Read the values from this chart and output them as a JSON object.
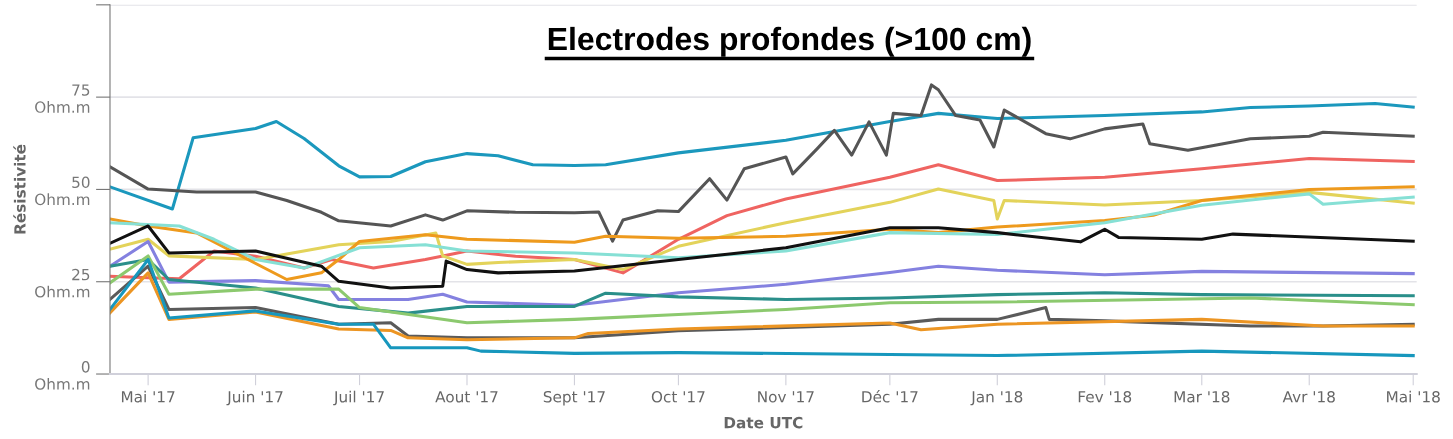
{
  "chart_data": {
    "type": "line",
    "title": "Electrodes profondes (>100 cm)",
    "xlabel": "Date UTC",
    "ylabel": "Résistivité",
    "xlim": [
      "2017-04-20",
      "2018-05-02"
    ],
    "xticks": [
      {
        "value": "2017-05-01",
        "label": "Mai '17"
      },
      {
        "value": "2017-06-01",
        "label": "Juin '17"
      },
      {
        "value": "2017-07-01",
        "label": "Juil '17"
      },
      {
        "value": "2017-08-01",
        "label": "Aout '17"
      },
      {
        "value": "2017-09-01",
        "label": "Sept '17"
      },
      {
        "value": "2017-10-01",
        "label": "Oct '17"
      },
      {
        "value": "2017-11-01",
        "label": "Nov '17"
      },
      {
        "value": "2017-12-01",
        "label": "Déc '17"
      },
      {
        "value": "2018-01-01",
        "label": "Jan '18"
      },
      {
        "value": "2018-02-01",
        "label": "Fev '18"
      },
      {
        "value": "2018-03-01",
        "label": "Mar '18"
      },
      {
        "value": "2018-04-01",
        "label": "Avr '18"
      },
      {
        "value": "2018-05-01",
        "label": "Mai '18"
      }
    ],
    "ylim": [
      0,
      100
    ],
    "yticks": [
      {
        "value": 0,
        "label": "0\nOhm.m"
      },
      {
        "value": 25,
        "label": "25\nOhm.m"
      },
      {
        "value": 50,
        "label": "50\nOhm.m"
      },
      {
        "value": 75,
        "label": "75\nOhm.m"
      },
      {
        "value": 100,
        "label": null
      }
    ],
    "grid": "y",
    "line_style": "solid",
    "marker": "none",
    "series": [
      {
        "color": "#1b98bd",
        "x": [
          "2017-04-20",
          "2017-05-08",
          "2017-05-14",
          "2017-06-01",
          "2017-06-07",
          "2017-06-15",
          "2017-06-25",
          "2017-07-01",
          "2017-07-10",
          "2017-07-20",
          "2017-08-01",
          "2017-08-10",
          "2017-08-20",
          "2017-09-01",
          "2017-09-10",
          "2017-10-01",
          "2017-11-01",
          "2017-12-01",
          "2017-12-15",
          "2018-01-01",
          "2018-02-01",
          "2018-03-01",
          "2018-03-15",
          "2018-04-01",
          "2018-04-20",
          "2018-05-01"
        ],
        "values": [
          50.7,
          44.7,
          64,
          66.5,
          68.4,
          63.8,
          56.4,
          53.4,
          53.5,
          57.5,
          59.7,
          59.1,
          56.7,
          56.5,
          56.7,
          59.9,
          63.3,
          68.4,
          70.6,
          69.2,
          70,
          71,
          72.2,
          72.6,
          73.3,
          72.3
        ]
      },
      {
        "color": "#555555",
        "x": [
          "2017-04-20",
          "2017-05-01",
          "2017-05-15",
          "2017-06-01",
          "2017-06-10",
          "2017-06-20",
          "2017-06-25",
          "2017-07-10",
          "2017-07-20",
          "2017-07-25",
          "2017-08-01",
          "2017-08-15",
          "2017-09-01",
          "2017-09-08",
          "2017-09-12",
          "2017-09-15",
          "2017-09-25",
          "2017-10-01",
          "2017-10-10",
          "2017-10-15",
          "2017-10-20",
          "2017-11-01",
          "2017-11-03",
          "2017-11-10",
          "2017-11-15",
          "2017-11-20",
          "2017-11-25",
          "2017-11-30",
          "2017-12-02",
          "2017-12-10",
          "2017-12-13",
          "2017-12-15",
          "2017-12-20",
          "2017-12-27",
          "2017-12-31",
          "2018-01-03",
          "2018-01-15",
          "2018-01-22",
          "2018-02-01",
          "2018-02-12",
          "2018-02-14",
          "2018-02-25",
          "2018-03-15",
          "2018-04-01",
          "2018-04-05",
          "2018-05-01"
        ],
        "values": [
          56.1,
          50.1,
          49.3,
          49.3,
          47,
          43.8,
          41.5,
          40.1,
          43.1,
          41.7,
          44.2,
          43.8,
          43.7,
          43.9,
          36,
          41.7,
          44.2,
          44,
          52.9,
          47.1,
          55.6,
          58.8,
          54.2,
          61,
          66,
          59.3,
          68.3,
          59.3,
          70.6,
          70,
          78.3,
          77,
          70,
          68.8,
          61.5,
          71.5,
          65.1,
          63.7,
          66.4,
          67.7,
          62.4,
          60.6,
          63.7,
          64.4,
          65.5,
          64.4
        ]
      },
      {
        "color": "#ef6461",
        "x": [
          "2017-04-20",
          "2017-05-01",
          "2017-05-10",
          "2017-05-20",
          "2017-06-01",
          "2017-06-15",
          "2017-06-23",
          "2017-07-05",
          "2017-07-20",
          "2017-08-01",
          "2017-08-15",
          "2017-09-01",
          "2017-09-15",
          "2017-10-01",
          "2017-10-15",
          "2017-11-01",
          "2017-12-01",
          "2017-12-15",
          "2018-01-01",
          "2018-02-01",
          "2018-03-01",
          "2018-04-01",
          "2018-05-01"
        ],
        "values": [
          26.5,
          26.1,
          25.8,
          33.3,
          31.9,
          28.7,
          31,
          28.7,
          31,
          33.3,
          31.9,
          31,
          27.4,
          36.5,
          42.9,
          47.4,
          53.3,
          56.7,
          52.4,
          53.3,
          55.6,
          58.4,
          57.6
        ]
      },
      {
        "color": "#e3d35a",
        "x": [
          "2017-04-20",
          "2017-05-01",
          "2017-05-07",
          "2017-06-01",
          "2017-06-25",
          "2017-07-10",
          "2017-07-23",
          "2017-07-25",
          "2017-08-01",
          "2017-08-10",
          "2017-09-01",
          "2017-09-15",
          "2017-10-01",
          "2017-11-01",
          "2017-12-01",
          "2017-12-15",
          "2017-12-31",
          "2018-01-01",
          "2018-01-03",
          "2018-02-01",
          "2018-03-01",
          "2018-04-01",
          "2018-05-01"
        ],
        "values": [
          33.8,
          36.5,
          32,
          31,
          35,
          35.9,
          38.2,
          32,
          29.7,
          30.2,
          31,
          28.3,
          34.6,
          41,
          46.5,
          50.1,
          47,
          42,
          47,
          45.8,
          47,
          49.2,
          46.3
        ]
      },
      {
        "color": "#ee9a1d",
        "x": [
          "2017-04-20",
          "2017-05-01",
          "2017-05-15",
          "2017-06-10",
          "2017-06-20",
          "2017-06-25",
          "2017-07-01",
          "2017-07-20",
          "2017-08-01",
          "2017-09-01",
          "2017-09-10",
          "2017-10-01",
          "2017-11-01",
          "2017-12-01",
          "2017-12-15",
          "2018-01-01",
          "2018-02-01",
          "2018-02-15",
          "2018-03-01",
          "2018-04-01",
          "2018-05-01"
        ],
        "values": [
          42,
          40.1,
          38.2,
          25.6,
          27.4,
          31,
          35.9,
          37.7,
          36.5,
          35.7,
          37.3,
          36.8,
          37.3,
          39.2,
          38.3,
          39.8,
          41.6,
          43,
          47,
          50,
          50.7
        ]
      },
      {
        "color": "#86e0d5",
        "x": [
          "2017-04-20",
          "2017-05-10",
          "2017-05-20",
          "2017-06-01",
          "2017-06-15",
          "2017-07-01",
          "2017-07-20",
          "2017-08-01",
          "2017-09-01",
          "2017-10-01",
          "2017-11-01",
          "2017-12-01",
          "2018-01-01",
          "2018-02-01",
          "2018-03-01",
          "2018-04-01",
          "2018-04-05",
          "2018-05-01"
        ],
        "values": [
          41,
          40.1,
          36.5,
          31,
          28.7,
          34.2,
          35,
          33.3,
          32.8,
          31.5,
          33.3,
          38.3,
          37.8,
          41,
          45.7,
          48.8,
          46,
          47.9
        ]
      },
      {
        "color": "#111111",
        "x": [
          "2017-04-20",
          "2017-05-01",
          "2017-05-07",
          "2017-06-01",
          "2017-06-20",
          "2017-06-25",
          "2017-07-10",
          "2017-07-25",
          "2017-07-26",
          "2017-08-01",
          "2017-08-10",
          "2017-09-01",
          "2017-10-01",
          "2017-11-01",
          "2017-12-01",
          "2017-12-15",
          "2018-01-01",
          "2018-01-25",
          "2018-02-01",
          "2018-02-05",
          "2018-03-01",
          "2018-03-10",
          "2018-05-01"
        ],
        "values": [
          35.4,
          40.1,
          32.8,
          33.3,
          29.2,
          25.1,
          23.3,
          23.8,
          30.6,
          28.3,
          27.4,
          27.9,
          31,
          34.2,
          39.6,
          39.6,
          38.3,
          35.8,
          39.2,
          37,
          36.5,
          37.9,
          36
        ]
      },
      {
        "color": "#8481e0",
        "x": [
          "2017-04-20",
          "2017-05-01",
          "2017-05-07",
          "2017-06-01",
          "2017-06-22",
          "2017-06-25",
          "2017-07-15",
          "2017-07-25",
          "2017-08-01",
          "2017-09-01",
          "2017-10-01",
          "2017-11-01",
          "2017-12-01",
          "2017-12-15",
          "2018-01-01",
          "2018-02-01",
          "2018-03-01",
          "2018-05-01"
        ],
        "values": [
          29.2,
          35.9,
          24.9,
          25.3,
          23.9,
          20.2,
          20.2,
          21.6,
          19.5,
          18.6,
          22,
          24.3,
          27.5,
          29.2,
          28.1,
          26.9,
          27.8,
          27.2
        ]
      },
      {
        "color": "#2a8f8a",
        "x": [
          "2017-04-20",
          "2017-05-01",
          "2017-05-07",
          "2017-06-01",
          "2017-06-25",
          "2017-07-15",
          "2017-08-01",
          "2017-09-01",
          "2017-09-10",
          "2017-10-01",
          "2017-11-01",
          "2017-12-01",
          "2018-01-01",
          "2018-02-01",
          "2018-03-01",
          "2018-05-01"
        ],
        "values": [
          29.2,
          31,
          25.6,
          23.3,
          18.3,
          16.5,
          18.3,
          18.3,
          21.9,
          20.9,
          20.2,
          20.6,
          21.5,
          22,
          21.5,
          21.2
        ]
      },
      {
        "color": "#8cc96e",
        "x": [
          "2017-04-20",
          "2017-05-01",
          "2017-05-07",
          "2017-06-01",
          "2017-06-25",
          "2017-07-01",
          "2017-08-01",
          "2017-09-01",
          "2017-10-01",
          "2017-11-01",
          "2017-12-01",
          "2018-01-01",
          "2018-03-15",
          "2018-05-01"
        ],
        "values": [
          24.7,
          32,
          21.6,
          23,
          23,
          18,
          13.9,
          14.8,
          16.1,
          17.5,
          19.3,
          19.5,
          20.6,
          18.8
        ]
      },
      {
        "color": "#5a5a5a",
        "x": [
          "2017-04-20",
          "2017-05-01",
          "2017-05-07",
          "2017-06-01",
          "2017-06-25",
          "2017-07-10",
          "2017-07-15",
          "2017-08-01",
          "2017-09-01",
          "2017-10-01",
          "2017-11-01",
          "2017-12-01",
          "2017-12-15",
          "2018-01-01",
          "2018-01-15",
          "2018-01-16",
          "2018-02-01",
          "2018-03-15",
          "2018-04-05",
          "2018-05-01"
        ],
        "values": [
          20.2,
          29.2,
          17.5,
          18,
          13.5,
          13.9,
          10.3,
          9.8,
          9.8,
          11.7,
          12.6,
          13.5,
          14.8,
          14.8,
          18,
          14.8,
          14.4,
          13,
          13,
          13.5
        ]
      },
      {
        "color": "#ec9523",
        "x": [
          "2017-04-20",
          "2017-05-01",
          "2017-05-07",
          "2017-06-01",
          "2017-06-25",
          "2017-07-10",
          "2017-07-15",
          "2017-08-01",
          "2017-09-01",
          "2017-09-05",
          "2017-10-01",
          "2017-12-01",
          "2017-12-10",
          "2018-01-01",
          "2018-03-01",
          "2018-04-05",
          "2018-05-01"
        ],
        "values": [
          16.6,
          27.4,
          14.8,
          16.8,
          12.2,
          11.8,
          9.8,
          9.3,
          9.8,
          11,
          12.2,
          13.8,
          12,
          13.5,
          14.8,
          13,
          13
        ]
      },
      {
        "color": "#1797bd",
        "x": [
          "2017-04-20",
          "2017-05-01",
          "2017-05-07",
          "2017-06-01",
          "2017-06-25",
          "2017-07-05",
          "2017-07-10",
          "2017-08-01",
          "2017-08-05",
          "2017-09-01",
          "2017-10-01",
          "2017-12-01",
          "2018-01-01",
          "2018-03-01",
          "2018-05-01"
        ],
        "values": [
          17.5,
          31,
          15.2,
          17.1,
          13.5,
          13.5,
          7.1,
          7.1,
          6.2,
          5.6,
          5.8,
          5.3,
          5,
          6.2,
          5
        ]
      }
    ]
  }
}
